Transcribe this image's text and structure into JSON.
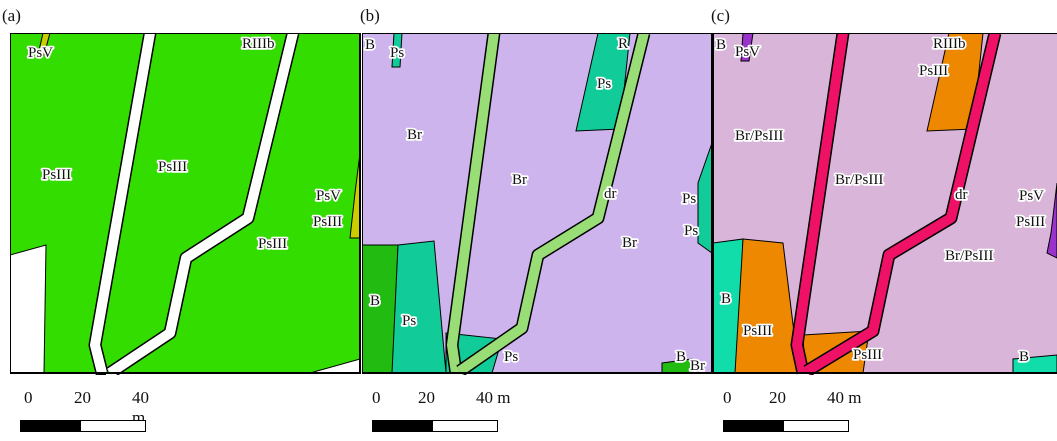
{
  "scale": {
    "t0": "0",
    "t1": "20",
    "t2": "40 m"
  },
  "panels": [
    {
      "letter": "(a)",
      "labels": [
        "PsV",
        "RIIIb",
        "PsIII",
        "PsIII",
        "PsV",
        "PsIII",
        "PsIII"
      ],
      "colors": {
        "field": "#33dd00",
        "road": "#ffffff",
        "strip": "#cccc00"
      }
    },
    {
      "letter": "(b)",
      "labels": [
        "B",
        "Ps",
        "R",
        "Ps",
        "Br",
        "Br",
        "dr",
        "Ps",
        "Ps",
        "Br",
        "B",
        "Ps",
        "Ps",
        "B",
        "Br"
      ],
      "colors": {
        "field": "#cdb4ec",
        "road": "#99dd77",
        "ps": "#11cc99",
        "b": "#22bb11"
      }
    },
    {
      "letter": "(c)",
      "labels": [
        "B",
        "PsV",
        "RIIIb",
        "PsIII",
        "Br/PsIII",
        "Br/PsIII",
        "dr",
        "PsV",
        "PsIII",
        "Br/PsIII",
        "B",
        "PsIII",
        "PsIII",
        "B"
      ],
      "colors": {
        "field": "#d9b5d9",
        "road": "#ee1166",
        "psIII": "#ee8800",
        "b": "#11ddaa",
        "psV": "#9933cc"
      }
    }
  ]
}
